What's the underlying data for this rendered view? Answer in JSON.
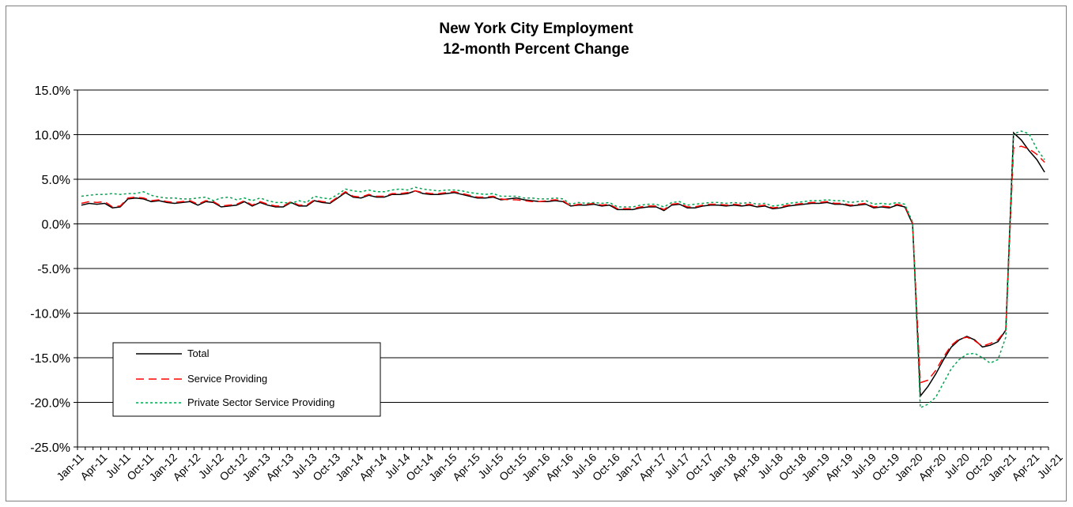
{
  "chart_data": {
    "type": "line",
    "title": "New York City Employment",
    "subtitle": "12-month Percent Change",
    "xlabel": "",
    "ylabel": "",
    "ylim": [
      -25,
      15
    ],
    "y_ticks": [
      "15.0%",
      "10.0%",
      "5.0%",
      "0.0%",
      "-5.0%",
      "-10.0%",
      "-15.0%",
      "-20.0%",
      "-25.0%"
    ],
    "y_tick_values": [
      15,
      10,
      5,
      0,
      -5,
      -10,
      -15,
      -20,
      -25
    ],
    "x_tick_labels": [
      "Jan-11",
      "Apr-11",
      "Jul-11",
      "Oct-11",
      "Jan-12",
      "Apr-12",
      "Jul-12",
      "Oct-12",
      "Jan-13",
      "Apr-13",
      "Jul-13",
      "Oct-13",
      "Jan-14",
      "Apr-14",
      "Jul-14",
      "Oct-14",
      "Jan-15",
      "Apr-15",
      "Jul-15",
      "Oct-15",
      "Jan-16",
      "Apr-16",
      "Jul-16",
      "Oct-16",
      "Jan-17",
      "Apr-17",
      "Jul-17",
      "Oct-17",
      "Jan-18",
      "Apr-18",
      "Jul-18",
      "Oct-18",
      "Jan-19",
      "Apr-19",
      "Jul-19",
      "Oct-19",
      "Jan-20",
      "Apr-20",
      "Jul-20",
      "Oct-20",
      "Jan-21",
      "Apr-21",
      "Jul-21"
    ],
    "grid": true,
    "legend_position": "bottom-left",
    "x_start": "Jan-11",
    "x_end": "Aug-21",
    "series": [
      {
        "name": "Total",
        "color": "#000000",
        "dash": "solid",
        "values": [
          2.1,
          2.3,
          2.2,
          2.3,
          1.8,
          1.9,
          2.8,
          2.9,
          2.8,
          2.5,
          2.6,
          2.4,
          2.3,
          2.4,
          2.5,
          2.1,
          2.5,
          2.4,
          1.9,
          2.0,
          2.1,
          2.5,
          2.0,
          2.4,
          2.1,
          1.9,
          1.9,
          2.4,
          2.0,
          2.0,
          2.6,
          2.4,
          2.3,
          2.9,
          3.5,
          3.0,
          2.9,
          3.2,
          3.0,
          3.0,
          3.3,
          3.3,
          3.4,
          3.7,
          3.4,
          3.3,
          3.3,
          3.4,
          3.5,
          3.3,
          3.1,
          2.9,
          2.9,
          3.0,
          2.7,
          2.8,
          2.9,
          2.7,
          2.6,
          2.5,
          2.5,
          2.6,
          2.5,
          2.0,
          2.1,
          2.1,
          2.2,
          2.0,
          2.1,
          1.6,
          1.6,
          1.6,
          1.8,
          1.9,
          1.9,
          1.5,
          2.1,
          2.2,
          1.8,
          1.8,
          2.0,
          2.1,
          2.1,
          2.0,
          2.1,
          2.0,
          2.1,
          1.9,
          2.0,
          1.7,
          1.8,
          2.0,
          2.1,
          2.2,
          2.3,
          2.3,
          2.4,
          2.2,
          2.2,
          2.0,
          2.1,
          2.2,
          1.8,
          1.9,
          1.8,
          2.1,
          1.9,
          0.0,
          -19.3,
          -18.2,
          -16.8,
          -15.2,
          -13.8,
          -13.0,
          -12.6,
          -13.0,
          -13.8,
          -13.6,
          -13.2,
          -11.9,
          10.2,
          9.4,
          8.2,
          7.2,
          5.8
        ]
      },
      {
        "name": "Service Providing",
        "color": "#ff0000",
        "dash": "long-dash",
        "values": [
          2.3,
          2.5,
          2.4,
          2.5,
          1.9,
          2.0,
          2.9,
          3.0,
          2.9,
          2.6,
          2.7,
          2.5,
          2.4,
          2.5,
          2.6,
          2.2,
          2.6,
          2.5,
          2.0,
          2.1,
          2.2,
          2.6,
          2.1,
          2.5,
          2.2,
          2.0,
          2.0,
          2.5,
          2.1,
          2.1,
          2.7,
          2.5,
          2.4,
          3.0,
          3.6,
          3.1,
          3.0,
          3.3,
          3.1,
          3.1,
          3.4,
          3.4,
          3.5,
          3.7,
          3.5,
          3.4,
          3.4,
          3.5,
          3.6,
          3.4,
          3.2,
          3.0,
          3.0,
          3.1,
          2.8,
          2.7,
          2.7,
          2.6,
          2.5,
          2.5,
          2.6,
          2.7,
          2.6,
          2.0,
          2.2,
          2.2,
          2.3,
          2.1,
          2.2,
          1.7,
          1.7,
          1.7,
          1.9,
          2.0,
          2.0,
          1.6,
          2.2,
          2.3,
          1.9,
          1.9,
          2.1,
          2.2,
          2.2,
          2.1,
          2.2,
          2.1,
          2.2,
          2.0,
          2.1,
          1.8,
          1.9,
          2.1,
          2.2,
          2.3,
          2.4,
          2.4,
          2.5,
          2.3,
          2.3,
          2.1,
          2.2,
          2.3,
          1.9,
          2.0,
          1.9,
          2.2,
          2.0,
          0.1,
          -17.8,
          -17.5,
          -16.4,
          -14.9,
          -13.6,
          -12.9,
          -12.7,
          -13.1,
          -13.7,
          -13.4,
          -13.0,
          -11.9,
          8.5,
          8.7,
          8.4,
          7.8,
          6.9
        ]
      },
      {
        "name": "Private Sector Service Providing",
        "color": "#00a651",
        "dash": "dot",
        "values": [
          3.1,
          3.2,
          3.3,
          3.3,
          3.4,
          3.3,
          3.4,
          3.4,
          3.6,
          3.2,
          3.0,
          2.9,
          2.9,
          2.8,
          2.8,
          2.9,
          3.0,
          2.6,
          2.9,
          3.0,
          2.7,
          2.9,
          2.6,
          2.9,
          2.6,
          2.4,
          2.4,
          2.3,
          2.6,
          2.4,
          3.1,
          2.9,
          2.8,
          3.3,
          3.9,
          3.7,
          3.6,
          3.8,
          3.6,
          3.6,
          3.8,
          3.9,
          3.8,
          4.1,
          3.9,
          3.8,
          3.7,
          3.8,
          3.8,
          3.7,
          3.5,
          3.4,
          3.3,
          3.4,
          3.1,
          3.1,
          3.1,
          2.9,
          2.9,
          2.8,
          2.8,
          2.9,
          2.8,
          2.2,
          2.4,
          2.3,
          2.4,
          2.3,
          2.4,
          1.9,
          1.9,
          1.9,
          2.1,
          2.2,
          2.2,
          1.9,
          2.4,
          2.5,
          2.1,
          2.2,
          2.3,
          2.4,
          2.4,
          2.3,
          2.4,
          2.3,
          2.4,
          2.2,
          2.3,
          2.0,
          2.1,
          2.3,
          2.4,
          2.5,
          2.6,
          2.6,
          2.7,
          2.6,
          2.6,
          2.4,
          2.5,
          2.6,
          2.2,
          2.3,
          2.2,
          2.4,
          2.2,
          0.2,
          -20.6,
          -20.2,
          -19.4,
          -17.8,
          -16.2,
          -15.2,
          -14.6,
          -14.5,
          -15.0,
          -15.6,
          -15.2,
          -12.7,
          10.1,
          10.4,
          10.1,
          8.4,
          7.2
        ]
      }
    ]
  }
}
